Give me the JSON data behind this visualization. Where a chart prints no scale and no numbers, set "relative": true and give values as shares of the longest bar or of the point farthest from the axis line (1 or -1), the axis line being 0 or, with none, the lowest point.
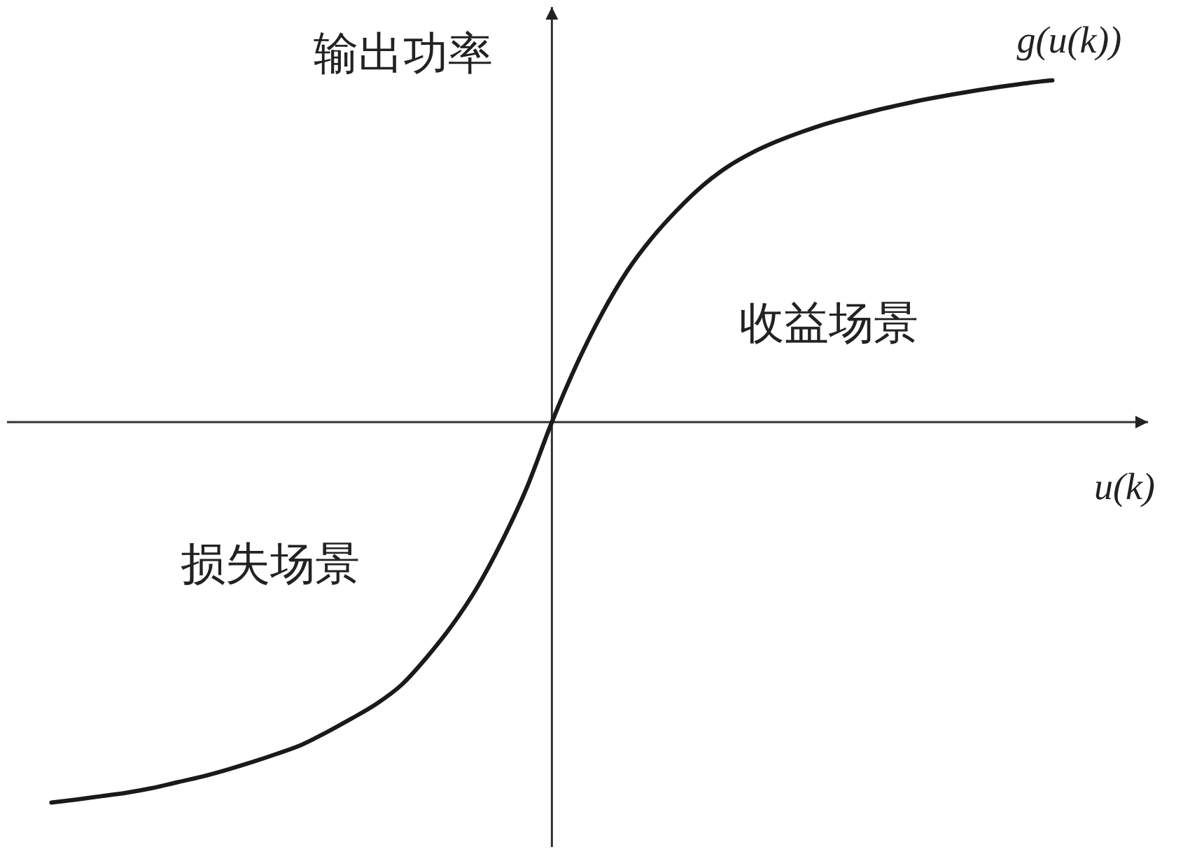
{
  "chart_data": {
    "type": "line",
    "relative": true,
    "categories": [
      null,
      null,
      null,
      null,
      null,
      null,
      null,
      null,
      null,
      null,
      null,
      null,
      null,
      null,
      null,
      null,
      null,
      null,
      null,
      null,
      null,
      null,
      null,
      null,
      null,
      null,
      null,
      null,
      null,
      null,
      null,
      null,
      null,
      null,
      null,
      null,
      null,
      null,
      null,
      null,
      null
    ],
    "series": [
      {
        "name": "g(u(k))",
        "color": "#1a1a1a",
        "values": [
          -1,
          -0.992,
          -0.983,
          -0.974,
          -0.962,
          -0.947,
          -0.932,
          -0.914,
          -0.894,
          -0.872,
          -0.848,
          -0.815,
          -0.779,
          -0.74,
          -0.69,
          -0.618,
          -0.535,
          -0.436,
          -0.314,
          -0.172,
          0,
          0.153,
          0.285,
          0.396,
          0.484,
          0.557,
          0.62,
          0.67,
          0.708,
          0.738,
          0.763,
          0.785,
          0.803,
          0.82,
          0.835,
          0.849,
          0.861,
          0.872,
          0.882,
          0.891,
          0.898
        ]
      }
    ],
    "xlabel": "u(k)",
    "ylabel": "输出功率",
    "annotations": [
      "收益场景",
      "损失场景"
    ],
    "line_style": "solid"
  }
}
